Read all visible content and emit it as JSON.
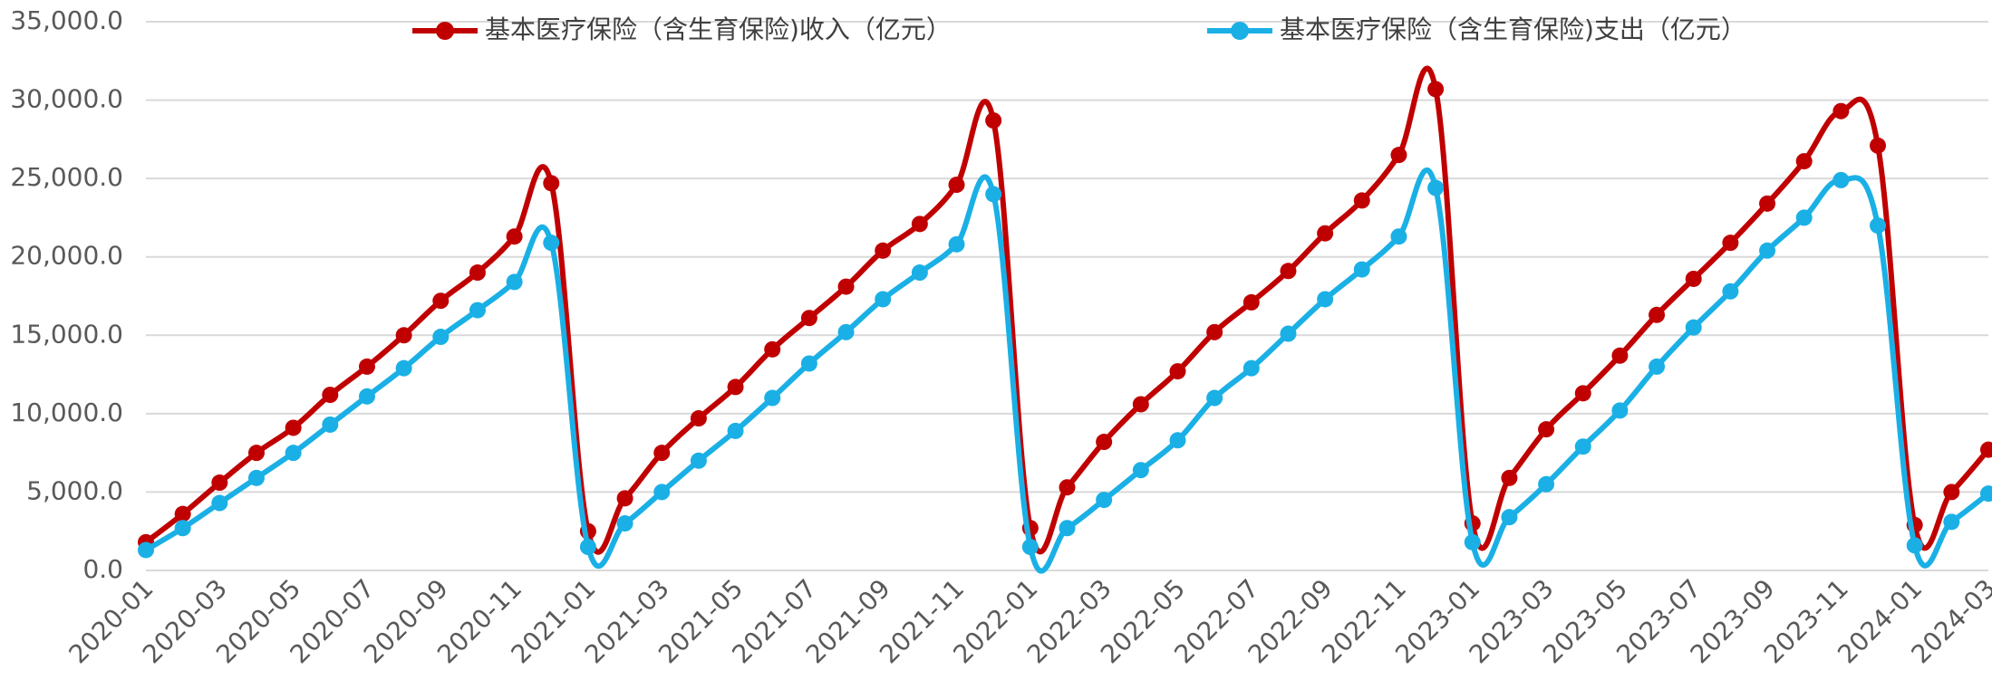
{
  "chart_data": {
    "type": "line",
    "categories": [
      "2020-01",
      "2020-02",
      "2020-03",
      "2020-04",
      "2020-05",
      "2020-06",
      "2020-07",
      "2020-08",
      "2020-09",
      "2020-10",
      "2020-11",
      "2020-12",
      "2021-01",
      "2021-02",
      "2021-03",
      "2021-04",
      "2021-05",
      "2021-06",
      "2021-07",
      "2021-08",
      "2021-09",
      "2021-10",
      "2021-11",
      "2021-12",
      "2022-01",
      "2022-02",
      "2022-03",
      "2022-04",
      "2022-05",
      "2022-06",
      "2022-07",
      "2022-08",
      "2022-09",
      "2022-10",
      "2022-11",
      "2022-12",
      "2023-01",
      "2023-02",
      "2023-03",
      "2023-04",
      "2023-05",
      "2023-06",
      "2023-07",
      "2023-08",
      "2023-09",
      "2023-10",
      "2023-11",
      "2023-12",
      "2024-01",
      "2024-02",
      "2024-03"
    ],
    "series": [
      {
        "name": "基本医疗保险（含生育保险)收入（亿元）",
        "color": "#c00000",
        "values": [
          1800,
          3600,
          5600,
          7500,
          9100,
          11200,
          13000,
          15000,
          17200,
          19000,
          21300,
          24700,
          2500,
          4600,
          7500,
          9700,
          11700,
          14100,
          16100,
          18100,
          20400,
          22100,
          24600,
          28700,
          2700,
          5300,
          8200,
          10600,
          12700,
          15200,
          17100,
          19100,
          21500,
          23600,
          26500,
          30700,
          3000,
          5900,
          9000,
          11300,
          13700,
          16300,
          18600,
          20900,
          23400,
          26100,
          29300,
          27100,
          2900,
          5000,
          7700
        ]
      },
      {
        "name": "基本医疗保险（含生育保险)支出（亿元）",
        "color": "#1ab0e6",
        "values": [
          1300,
          2700,
          4300,
          5900,
          7500,
          9300,
          11100,
          12900,
          14900,
          16600,
          18400,
          20900,
          1500,
          3000,
          5000,
          7000,
          8900,
          11000,
          13200,
          15200,
          17300,
          19000,
          20800,
          24000,
          1500,
          2700,
          4500,
          6400,
          8300,
          11000,
          12900,
          15100,
          17300,
          19200,
          21300,
          24400,
          1800,
          3400,
          5500,
          7900,
          10200,
          13000,
          15500,
          17800,
          20400,
          22500,
          24900,
          22000,
          1600,
          3100,
          4900
        ]
      }
    ],
    "ylim": [
      0,
      35000
    ],
    "yticks": [
      {
        "value": 0,
        "label": "0.0"
      },
      {
        "value": 5000,
        "label": "5,000.0"
      },
      {
        "value": 10000,
        "label": "10,000.0"
      },
      {
        "value": 15000,
        "label": "15,000.0"
      },
      {
        "value": 20000,
        "label": "20,000.0"
      },
      {
        "value": 25000,
        "label": "25,000.0"
      },
      {
        "value": 30000,
        "label": "30,000.0"
      },
      {
        "value": 35000,
        "label": "35,000.0"
      }
    ],
    "grid": true,
    "legend": "top"
  }
}
